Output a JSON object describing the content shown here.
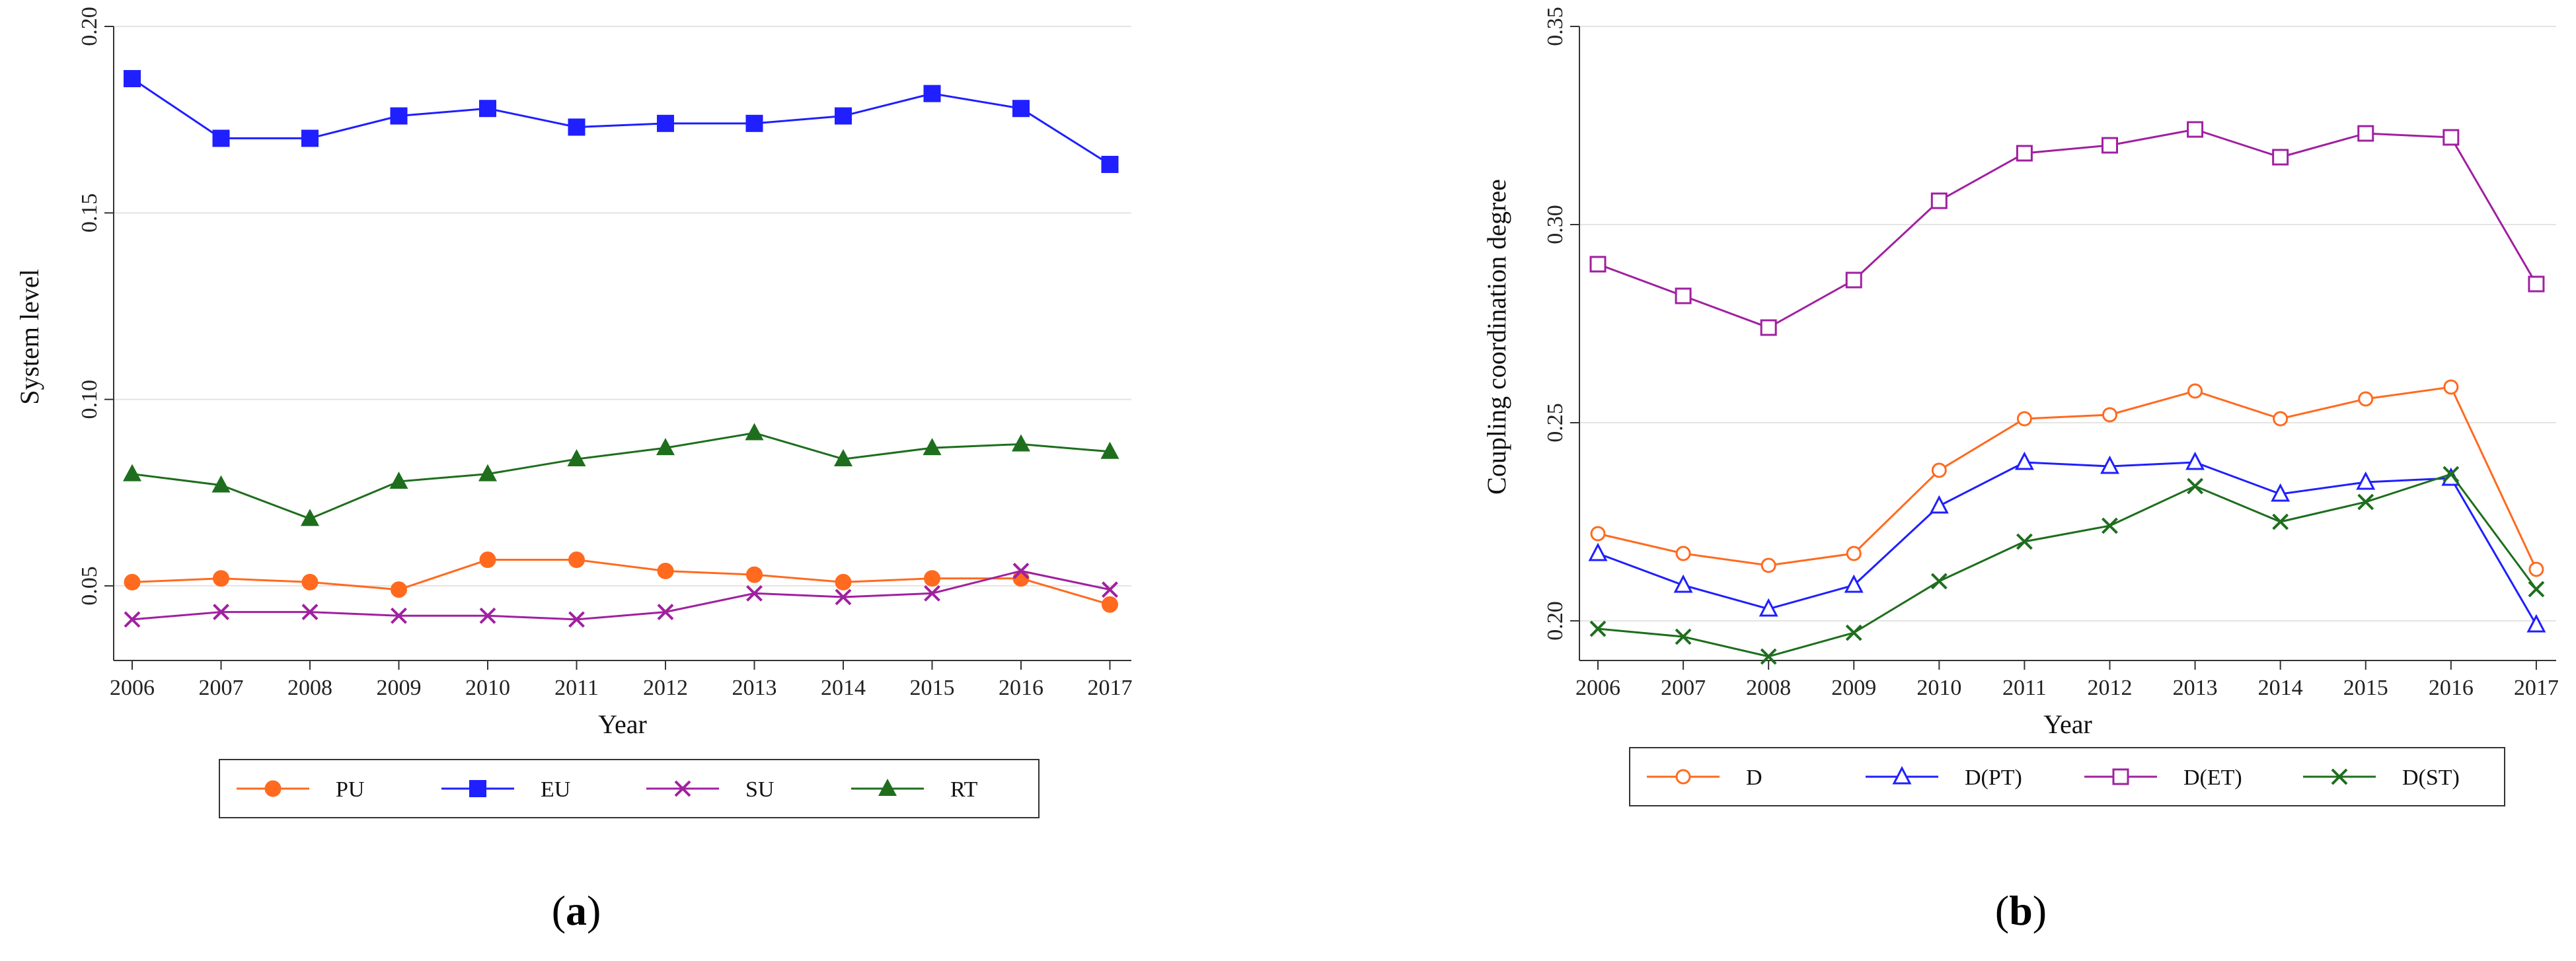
{
  "chart_data": [
    {
      "id": "a",
      "type": "line",
      "caption_open": "(",
      "caption_letter": "a",
      "caption_close": ")",
      "xlabel": "Year",
      "ylabel": "System level",
      "x": [
        "2006",
        "2007",
        "2008",
        "2009",
        "2010",
        "2011",
        "2012",
        "2013",
        "2014",
        "2015",
        "2016",
        "2017"
      ],
      "ylim": [
        0.03,
        0.2
      ],
      "yticks": [
        0.05,
        0.1,
        0.15,
        0.2
      ],
      "ytick_labels": [
        "0.05",
        "0.10",
        "0.15",
        "0.20"
      ],
      "grid": true,
      "legend_position": "bottom",
      "series": [
        {
          "name": "PU",
          "color": "#FF6A1F",
          "marker": "circle",
          "values": [
            0.051,
            0.052,
            0.051,
            0.049,
            0.057,
            0.057,
            0.054,
            0.053,
            0.051,
            0.052,
            0.052,
            0.045
          ]
        },
        {
          "name": "EU",
          "color": "#1F1FFF",
          "marker": "square",
          "values": [
            0.186,
            0.17,
            0.17,
            0.176,
            0.178,
            0.173,
            0.174,
            0.174,
            0.176,
            0.182,
            0.178,
            0.163
          ]
        },
        {
          "name": "SU",
          "color": "#A020A0",
          "marker": "x",
          "values": [
            0.041,
            0.043,
            0.043,
            0.042,
            0.042,
            0.041,
            0.043,
            0.048,
            0.047,
            0.048,
            0.054,
            0.049
          ]
        },
        {
          "name": "RT",
          "color": "#1E6E1E",
          "marker": "triangle",
          "values": [
            0.08,
            0.077,
            0.068,
            0.078,
            0.08,
            0.084,
            0.087,
            0.091,
            0.084,
            0.087,
            0.088,
            0.086
          ]
        }
      ]
    },
    {
      "id": "b",
      "type": "line",
      "caption_open": "(",
      "caption_letter": "b",
      "caption_close": ")",
      "xlabel": "Year",
      "ylabel": "Coupling coordination degree",
      "x": [
        "2006",
        "2007",
        "2008",
        "2009",
        "2010",
        "2011",
        "2012",
        "2013",
        "2014",
        "2015",
        "2016",
        "2017"
      ],
      "ylim": [
        0.19,
        0.35
      ],
      "yticks": [
        0.2,
        0.25,
        0.3,
        0.35
      ],
      "ytick_labels": [
        "0.20",
        "0.25",
        "0.30",
        "0.35"
      ],
      "grid": true,
      "legend_position": "bottom",
      "series": [
        {
          "name": "D",
          "color": "#FF6A1F",
          "marker": "open-circle",
          "values": [
            0.222,
            0.217,
            0.214,
            0.217,
            0.238,
            0.251,
            0.252,
            0.258,
            0.251,
            0.256,
            0.259,
            0.213
          ]
        },
        {
          "name": "D(PT)",
          "color": "#1F1FFF",
          "marker": "open-triangle",
          "values": [
            0.217,
            0.209,
            0.203,
            0.209,
            0.229,
            0.24,
            0.239,
            0.24,
            0.232,
            0.235,
            0.236,
            0.199
          ]
        },
        {
          "name": "D(ET)",
          "color": "#A020A0",
          "marker": "open-square",
          "values": [
            0.29,
            0.282,
            0.274,
            0.286,
            0.306,
            0.318,
            0.32,
            0.324,
            0.317,
            0.323,
            0.322,
            0.285
          ]
        },
        {
          "name": "D(ST)",
          "color": "#1E6E1E",
          "marker": "x",
          "values": [
            0.198,
            0.196,
            0.191,
            0.197,
            0.21,
            0.22,
            0.224,
            0.234,
            0.225,
            0.23,
            0.237,
            0.208
          ]
        }
      ]
    }
  ]
}
